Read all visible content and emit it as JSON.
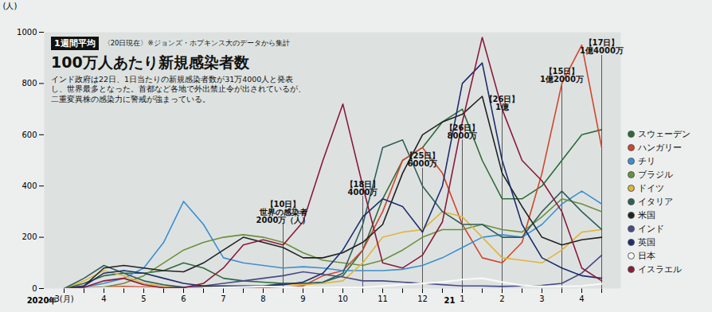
{
  "chart_data": {
    "type": "line",
    "subtitle": "1週間平均",
    "source_note": "〈20日現在〉※ジョンズ・ホプキンス大のデータから集計",
    "title": "100万人あたり新規感染者数",
    "note": "インド政府は22日、1日当たりの新規感染者数が31万4000人と発表し、世界最多となった。首都など各地で外出禁止令が出されているが、二重変異株の感染力に警戒が強まっている。",
    "y_label": "(人)",
    "ylim": [
      0,
      1000
    ],
    "yticks": [
      0,
      200,
      400,
      600,
      800,
      1000
    ],
    "grid": false,
    "legend": "right",
    "categories": [
      "3(月)",
      null,
      "4",
      null,
      "5",
      null,
      "6",
      null,
      "7",
      null,
      "8",
      null,
      "9",
      null,
      "10",
      null,
      "11",
      null,
      "12",
      null,
      "1",
      null,
      "2",
      null,
      "3",
      null,
      "4",
      null
    ],
    "year_labels": [
      {
        "position": 0,
        "label": "2020年"
      },
      {
        "position": 20,
        "label": "21"
      }
    ],
    "annotations": [
      {
        "position": 11,
        "date": "【10日】",
        "lines": [
          "世界の感染者",
          "2000万（人）"
        ]
      },
      {
        "position": 15,
        "date": "【18日】",
        "lines": [
          "4000万"
        ]
      },
      {
        "position": 18,
        "date": "【25日】",
        "lines": [
          "6000万"
        ]
      },
      {
        "position": 20,
        "date": "【26日】",
        "lines": [
          "8000万"
        ]
      },
      {
        "position": 22,
        "date": "【26日】",
        "lines": [
          "1億"
        ]
      },
      {
        "position": 25,
        "date": "【15日】",
        "lines": [
          "1億2000万"
        ]
      },
      {
        "position": 27,
        "date": "【17日】",
        "lines": [
          "1億4000万"
        ]
      }
    ],
    "series": [
      {
        "name": "スウェーデン",
        "color": "#2e6b3a",
        "values": [
          0,
          20,
          50,
          60,
          60,
          70,
          100,
          80,
          40,
          30,
          25,
          20,
          15,
          25,
          50,
          150,
          350,
          500,
          550,
          650,
          700,
          500,
          350,
          350,
          400,
          500,
          600,
          620
        ]
      },
      {
        "name": "ハンガリー",
        "color": "#d2452b",
        "values": [
          0,
          2,
          5,
          8,
          5,
          3,
          1,
          1,
          1,
          1,
          2,
          3,
          10,
          50,
          70,
          150,
          300,
          500,
          550,
          450,
          250,
          120,
          100,
          180,
          450,
          800,
          950,
          550
        ]
      },
      {
        "name": "チリ",
        "color": "#3d8fd0",
        "values": [
          0,
          5,
          20,
          40,
          80,
          180,
          340,
          250,
          120,
          100,
          90,
          80,
          85,
          80,
          70,
          70,
          70,
          75,
          90,
          120,
          160,
          200,
          210,
          200,
          250,
          330,
          380,
          330
        ]
      },
      {
        "name": "ブラジル",
        "color": "#6e8f3c",
        "values": [
          0,
          0,
          5,
          20,
          50,
          100,
          150,
          180,
          200,
          210,
          200,
          180,
          140,
          110,
          100,
          90,
          110,
          150,
          200,
          230,
          230,
          250,
          230,
          220,
          280,
          350,
          330,
          300
        ]
      },
      {
        "name": "ドイツ",
        "color": "#e0b53a",
        "values": [
          0,
          30,
          70,
          50,
          20,
          10,
          5,
          5,
          5,
          10,
          10,
          15,
          15,
          20,
          30,
          100,
          200,
          220,
          230,
          300,
          280,
          200,
          120,
          110,
          100,
          150,
          220,
          230
        ]
      },
      {
        "name": "イタリア",
        "color": "#2f5f5a",
        "values": [
          0,
          40,
          90,
          60,
          30,
          15,
          5,
          3,
          3,
          5,
          10,
          20,
          20,
          25,
          60,
          250,
          550,
          580,
          400,
          300,
          250,
          250,
          200,
          200,
          300,
          380,
          300,
          230
        ]
      },
      {
        "name": "米国",
        "color": "#222222",
        "values": [
          0,
          10,
          80,
          90,
          80,
          70,
          65,
          100,
          150,
          200,
          180,
          160,
          120,
          120,
          140,
          180,
          250,
          450,
          600,
          650,
          680,
          750,
          450,
          320,
          200,
          170,
          190,
          200
        ]
      },
      {
        "name": "インド",
        "color": "#4a4a8a",
        "values": [
          0,
          0,
          0,
          0,
          0,
          2,
          5,
          10,
          20,
          30,
          40,
          50,
          65,
          55,
          45,
          30,
          30,
          25,
          20,
          15,
          10,
          10,
          8,
          10,
          12,
          20,
          60,
          130
        ]
      },
      {
        "name": "英国",
        "color": "#1e2d6b",
        "values": [
          0,
          10,
          60,
          70,
          60,
          40,
          20,
          10,
          10,
          10,
          10,
          15,
          25,
          60,
          150,
          280,
          350,
          320,
          220,
          400,
          800,
          880,
          500,
          250,
          120,
          80,
          50,
          40
        ]
      },
      {
        "name": "日本",
        "color": "#f8f8f8",
        "values": [
          0,
          0,
          2,
          3,
          1,
          0,
          0,
          1,
          4,
          6,
          8,
          5,
          4,
          3,
          4,
          4,
          10,
          15,
          20,
          25,
          35,
          40,
          25,
          12,
          8,
          8,
          10,
          18
        ]
      },
      {
        "name": "イスラエル",
        "color": "#8b1a3a",
        "values": [
          0,
          5,
          30,
          40,
          15,
          3,
          3,
          20,
          80,
          170,
          190,
          170,
          260,
          500,
          720,
          400,
          100,
          80,
          130,
          260,
          650,
          980,
          700,
          500,
          420,
          300,
          80,
          30
        ]
      }
    ]
  }
}
